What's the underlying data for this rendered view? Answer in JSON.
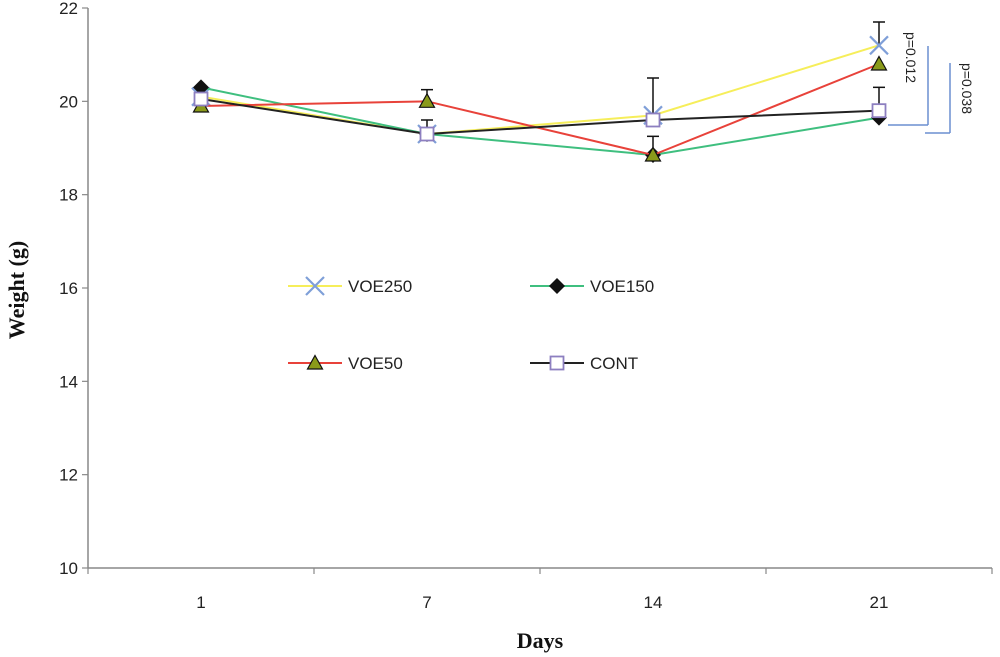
{
  "chart_data": {
    "type": "line",
    "xlabel": "Days",
    "ylabel": "Weight (g)",
    "categories": [
      "1",
      "7",
      "14",
      "21"
    ],
    "ylim": [
      10,
      22
    ],
    "yticks": [
      10,
      12,
      14,
      16,
      18,
      20,
      22
    ],
    "grid": false,
    "legend_position": "center-left",
    "series": [
      {
        "name": "VOE250",
        "values": [
          20.1,
          19.3,
          19.7,
          21.2
        ],
        "errors": [
          null,
          null,
          0.8,
          0.5
        ],
        "color": "#f6ee5a",
        "marker": "x",
        "marker_color": "#7f9fd8"
      },
      {
        "name": "VOE150",
        "values": [
          20.3,
          19.3,
          18.85,
          19.65
        ],
        "errors": [
          null,
          null,
          null,
          null
        ],
        "color": "#3fbf7f",
        "marker": "diamond",
        "marker_color": "#111111"
      },
      {
        "name": "VOE50",
        "values": [
          19.9,
          20.0,
          18.85,
          20.8
        ],
        "errors": [
          null,
          0.25,
          0.4,
          null
        ],
        "color": "#e8423a",
        "marker": "triangle",
        "marker_color": "#111111",
        "marker_fill": "#8a9a1a"
      },
      {
        "name": "CONT",
        "values": [
          20.05,
          19.3,
          19.6,
          19.8
        ],
        "errors": [
          null,
          0.3,
          null,
          0.5
        ],
        "color": "#222222",
        "marker": "square",
        "marker_color": "#8d7fc0"
      }
    ],
    "annotations": [
      "p=0.012",
      "p=0.038"
    ]
  }
}
